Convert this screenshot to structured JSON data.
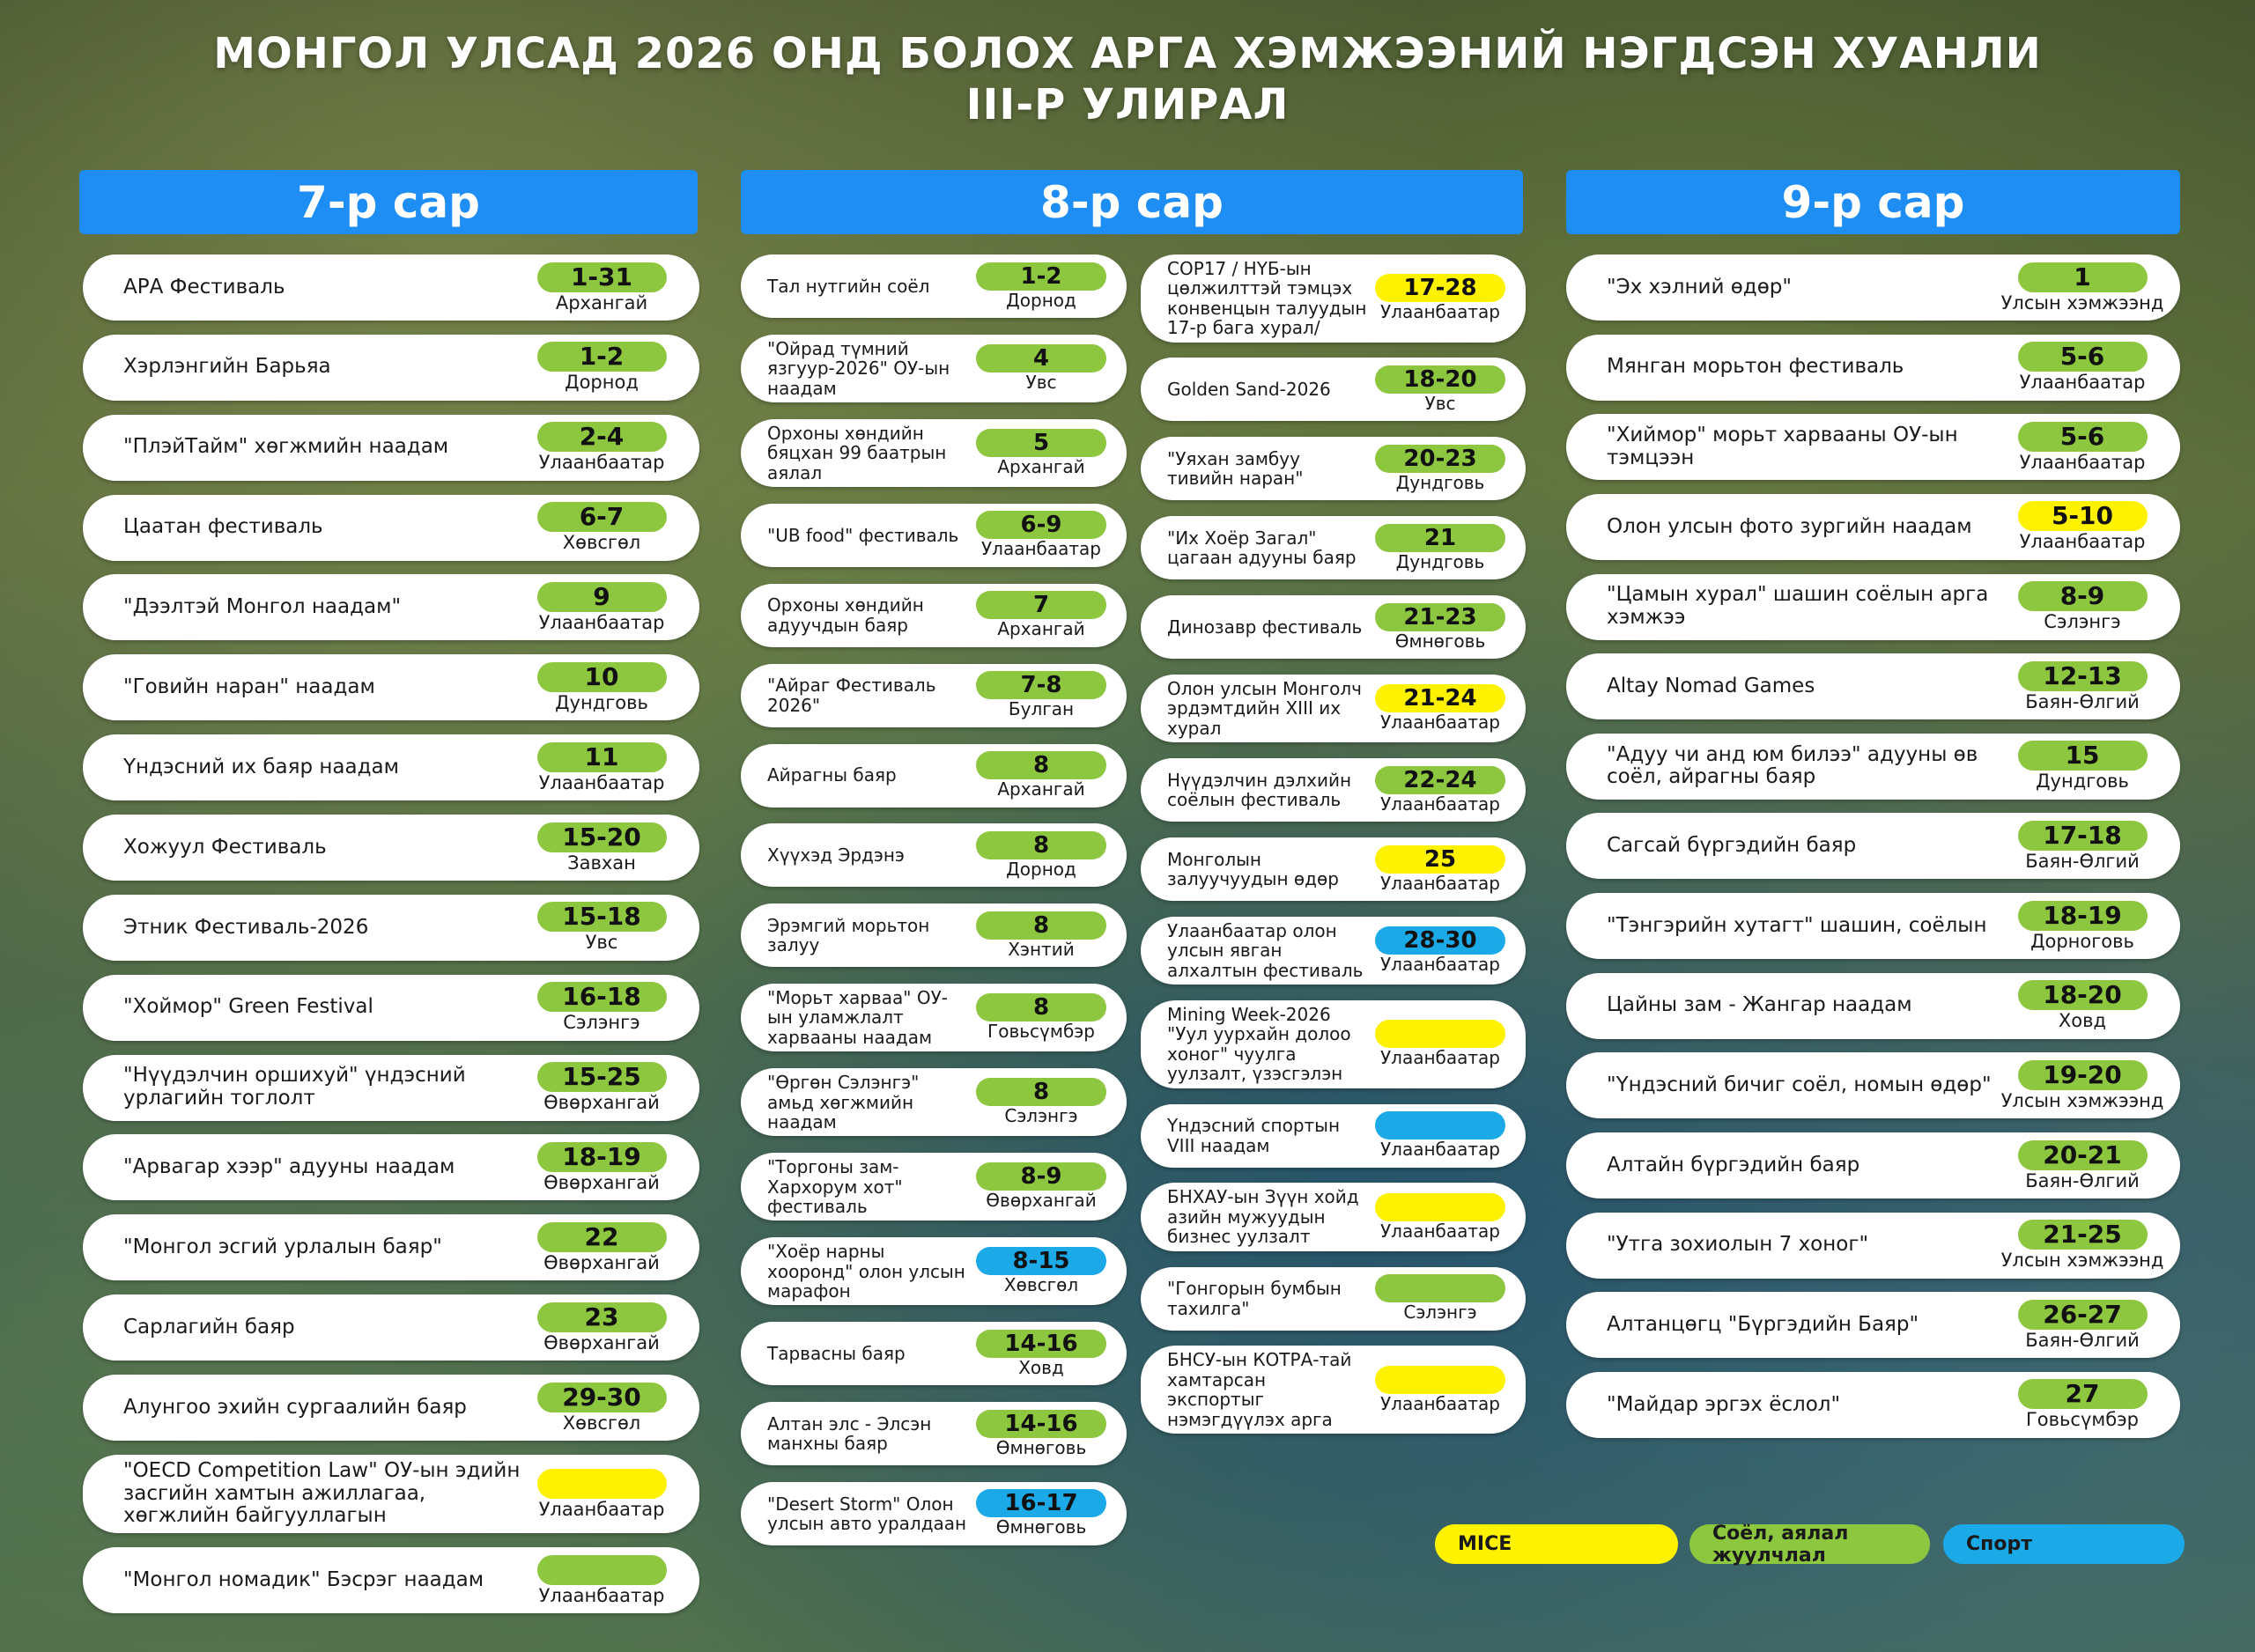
{
  "title": {
    "line1": "МОНГОЛ УЛСАД 2026 ОНД БОЛОХ АРГА ХЭМЖЭЭНИЙ НЭГДСЭН ХУАНЛИ",
    "line2": "III-Р УЛИРАЛ"
  },
  "colors": {
    "header": "#1e8ef5",
    "mice": "#fff200",
    "culture": "#8dc63f",
    "sport": "#1ba9e8"
  },
  "legend": [
    {
      "label": "MICE",
      "category": "mice"
    },
    {
      "label": "Соёл, аялал жуулчлал",
      "category": "culture"
    },
    {
      "label": "Спорт",
      "category": "sport"
    }
  ],
  "months": [
    {
      "label": "7-р сар",
      "columns": [
        [
          {
            "name": "АРА Фестиваль",
            "date": "1-31",
            "location": "Архангай",
            "category": "culture"
          },
          {
            "name": "Хэрлэнгийн Барьяа",
            "date": "1-2",
            "location": "Дорнод",
            "category": "culture"
          },
          {
            "name": "\"ПлэйТайм\" хөгжмийн наадам",
            "date": "2-4",
            "location": "Улаанбаатар",
            "category": "culture"
          },
          {
            "name": "Цаатан фестиваль",
            "date": "6-7",
            "location": "Хөвсгөл",
            "category": "culture"
          },
          {
            "name": "\"Дээлтэй Монгол наадам\"",
            "date": "9",
            "location": "Улаанбаатар",
            "category": "culture"
          },
          {
            "name": "\"Говийн наран\" наадам",
            "date": "10",
            "location": "Дундговь",
            "category": "culture"
          },
          {
            "name": "Үндэсний их баяр наадам",
            "date": "11",
            "location": "Улаанбаатар",
            "category": "culture"
          },
          {
            "name": "Хожуул Фестиваль",
            "date": "15-20",
            "location": "Завхан",
            "category": "culture"
          },
          {
            "name": "Этник Фестиваль-2026",
            "date": "15-18",
            "location": "Увс",
            "category": "culture"
          },
          {
            "name": "\"Хоймор\" Green Festival",
            "date": "16-18",
            "location": "Сэлэнгэ",
            "category": "culture"
          },
          {
            "name": "\"Нүүдэлчин оршихуй\" үндэсний урлагийн тоглолт",
            "date": "15-25",
            "location": "Өвөрхангай",
            "category": "culture"
          },
          {
            "name": "\"Арвагар хээр\" адууны наадам",
            "date": "18-19",
            "location": "Өвөрхангай",
            "category": "culture"
          },
          {
            "name": "\"Монгол эсгий урлалын баяр\"",
            "date": "22",
            "location": "Өвөрхангай",
            "category": "culture"
          },
          {
            "name": "Сарлагийн баяр",
            "date": "23",
            "location": "Өвөрхангай",
            "category": "culture"
          },
          {
            "name": "Алунгоо эхийн сургаалийн баяр",
            "date": "29-30",
            "location": "Хөвсгөл",
            "category": "culture"
          },
          {
            "name": "\"OECD Competition Law\" ОУ-ын эдийн засгийн хамтын ажиллагаа, хөгжлийн байгууллагын",
            "date": "",
            "location": "Улаанбаатар",
            "category": "mice"
          },
          {
            "name": "\"Монгол номадик\" Бэсрэг наадам",
            "date": "",
            "location": "Улаанбаатар",
            "category": "culture"
          }
        ]
      ]
    },
    {
      "label": "8-р сар",
      "columns": [
        [
          {
            "name": "Тал нутгийн соёл",
            "date": "1-2",
            "location": "Дорнод",
            "category": "culture"
          },
          {
            "name": "\"Ойрад түмний язгуур-2026\" ОУ-ын наадам",
            "date": "4",
            "location": "Увс",
            "category": "culture"
          },
          {
            "name": "Орхоны хөндийн бяцхан 99 баатрын аялал",
            "date": "5",
            "location": "Архангай",
            "category": "culture"
          },
          {
            "name": "\"UB food\" фестиваль",
            "date": "6-9",
            "location": "Улаанбаатар",
            "category": "culture"
          },
          {
            "name": "Орхоны хөндийн адуучдын баяр",
            "date": "7",
            "location": "Архангай",
            "category": "culture"
          },
          {
            "name": "\"Айраг Фестиваль 2026\"",
            "date": "7-8",
            "location": "Булган",
            "category": "culture"
          },
          {
            "name": "Айрагны баяр",
            "date": "8",
            "location": "Архангай",
            "category": "culture"
          },
          {
            "name": "Хүүхэд Эрдэнэ",
            "date": "8",
            "location": "Дорнод",
            "category": "culture"
          },
          {
            "name": "Эрэмгий морьтон залуу",
            "date": "8",
            "location": "Хэнтий",
            "category": "culture"
          },
          {
            "name": "\"Морьт харваа\" ОУ-ын уламжлалт харвааны наадам",
            "date": "8",
            "location": "Говьсүмбэр",
            "category": "culture"
          },
          {
            "name": "\"Өргөн Сэлэнгэ\" амьд хөгжмийн наадам",
            "date": "8",
            "location": "Сэлэнгэ",
            "category": "culture"
          },
          {
            "name": "\"Торгоны зам-Хархорум хот\" фестиваль",
            "date": "8-9",
            "location": "Өвөрхангай",
            "category": "culture"
          },
          {
            "name": "\"Хоёр нарны хооронд\" олон улсын марафон",
            "date": "8-15",
            "location": "Хөвсгөл",
            "category": "sport"
          },
          {
            "name": "Тарвасны баяр",
            "date": "14-16",
            "location": "Ховд",
            "category": "culture"
          },
          {
            "name": "Алтан элс - Элсэн манхны баяр",
            "date": "14-16",
            "location": "Өмнөговь",
            "category": "culture"
          },
          {
            "name": "\"Desert Storm\" Олон улсын авто уралдаан",
            "date": "16-17",
            "location": "Өмнөговь",
            "category": "sport"
          }
        ],
        [
          {
            "name": "COP17 / НҮБ-ын цөлжилттэй тэмцэх конвенцын талуудын 17-р бага хурал/",
            "date": "17-28",
            "location": "Улаанбаатар",
            "category": "mice"
          },
          {
            "name": "Golden Sand-2026",
            "date": "18-20",
            "location": "Увс",
            "category": "culture"
          },
          {
            "name": "\"Уяхан замбуу тивийн наран\"",
            "date": "20-23",
            "location": "Дундговь",
            "category": "culture"
          },
          {
            "name": "\"Их Хоёр Загал\" цагаан адууны баяр",
            "date": "21",
            "location": "Дундговь",
            "category": "culture"
          },
          {
            "name": "Динозавр фестиваль",
            "date": "21-23",
            "location": "Өмнөговь",
            "category": "culture"
          },
          {
            "name": "Олон улсын Монголч эрдэмтдийн XIII их хурал",
            "date": "21-24",
            "location": "Улаанбаатар",
            "category": "mice"
          },
          {
            "name": "Нүүдэлчин дэлхийн соёлын фестиваль",
            "date": "22-24",
            "location": "Улаанбаатар",
            "category": "culture"
          },
          {
            "name": "Монголын залуучуудын өдөр",
            "date": "25",
            "location": "Улаанбаатар",
            "category": "mice"
          },
          {
            "name": "Улаанбаатар олон улсын явган алхалтын фестиваль",
            "date": "28-30",
            "location": "Улаанбаатар",
            "category": "sport"
          },
          {
            "name": "Mining Week-2026 \"Уул уурхайн долоо хоног\" чуулга уулзалт, үзэсгэлэн",
            "date": "",
            "location": "Улаанбаатар",
            "category": "mice"
          },
          {
            "name": "Үндэсний спортын VIII наадам",
            "date": "",
            "location": "Улаанбаатар",
            "category": "sport"
          },
          {
            "name": "БНХАУ-ын Зүүн хойд азийн мужуудын бизнес уулзалт",
            "date": "",
            "location": "Улаанбаатар",
            "category": "mice"
          },
          {
            "name": "\"Гонгорын бумбын тахилга\"",
            "date": "",
            "location": "Сэлэнгэ",
            "category": "culture"
          },
          {
            "name": "БНСУ-ын КОТРА-тай хамтарсан экспортыг нэмэгдүүлэх арга",
            "date": "",
            "location": "Улаанбаатар",
            "category": "mice"
          }
        ]
      ]
    },
    {
      "label": "9-р сар",
      "columns": [
        [
          {
            "name": "\"Эх хэлний өдөр\"",
            "date": "1",
            "location": "Улсын хэмжээнд",
            "category": "culture"
          },
          {
            "name": "Мянган морьтон фестиваль",
            "date": "5-6",
            "location": "Улаанбаатар",
            "category": "culture"
          },
          {
            "name": "\"Хиймор\" морьт харвааны ОУ-ын тэмцээн",
            "date": "5-6",
            "location": "Улаанбаатар",
            "category": "culture"
          },
          {
            "name": "Олон улсын фото зургийн наадам",
            "date": "5-10",
            "location": "Улаанбаатар",
            "category": "mice"
          },
          {
            "name": "\"Цамын хурал\" шашин соёлын арга хэмжээ",
            "date": "8-9",
            "location": "Сэлэнгэ",
            "category": "culture"
          },
          {
            "name": "Altay Nomad Games",
            "date": "12-13",
            "location": "Баян-Өлгий",
            "category": "culture"
          },
          {
            "name": "\"Адуу чи анд юм билээ\" адууны өв соёл, айрагны баяр",
            "date": "15",
            "location": "Дундговь",
            "category": "culture"
          },
          {
            "name": "Сагсай бүргэдийн баяр",
            "date": "17-18",
            "location": "Баян-Өлгий",
            "category": "culture"
          },
          {
            "name": "\"Тэнгэрийн хутагт\" шашин, соёлын",
            "date": "18-19",
            "location": "Дорноговь",
            "category": "culture"
          },
          {
            "name": "Цайны зам - Жангар наадам",
            "date": "18-20",
            "location": "Ховд",
            "category": "culture"
          },
          {
            "name": "\"Үндэсний бичиг соёл, номын өдөр\"",
            "date": "19-20",
            "location": "Улсын хэмжээнд",
            "category": "culture"
          },
          {
            "name": "Алтайн бүргэдийн баяр",
            "date": "20-21",
            "location": "Баян-Өлгий",
            "category": "culture"
          },
          {
            "name": "\"Утга зохиолын 7 хоног\"",
            "date": "21-25",
            "location": "Улсын хэмжээнд",
            "category": "culture"
          },
          {
            "name": "Алтанцөгц \"Бүргэдийн Баяр\"",
            "date": "26-27",
            "location": "Баян-Өлгий",
            "category": "culture"
          },
          {
            "name": "\"Майдар эргэх ёслол\"",
            "date": "27",
            "location": "Говьсүмбэр",
            "category": "culture"
          }
        ]
      ]
    }
  ]
}
